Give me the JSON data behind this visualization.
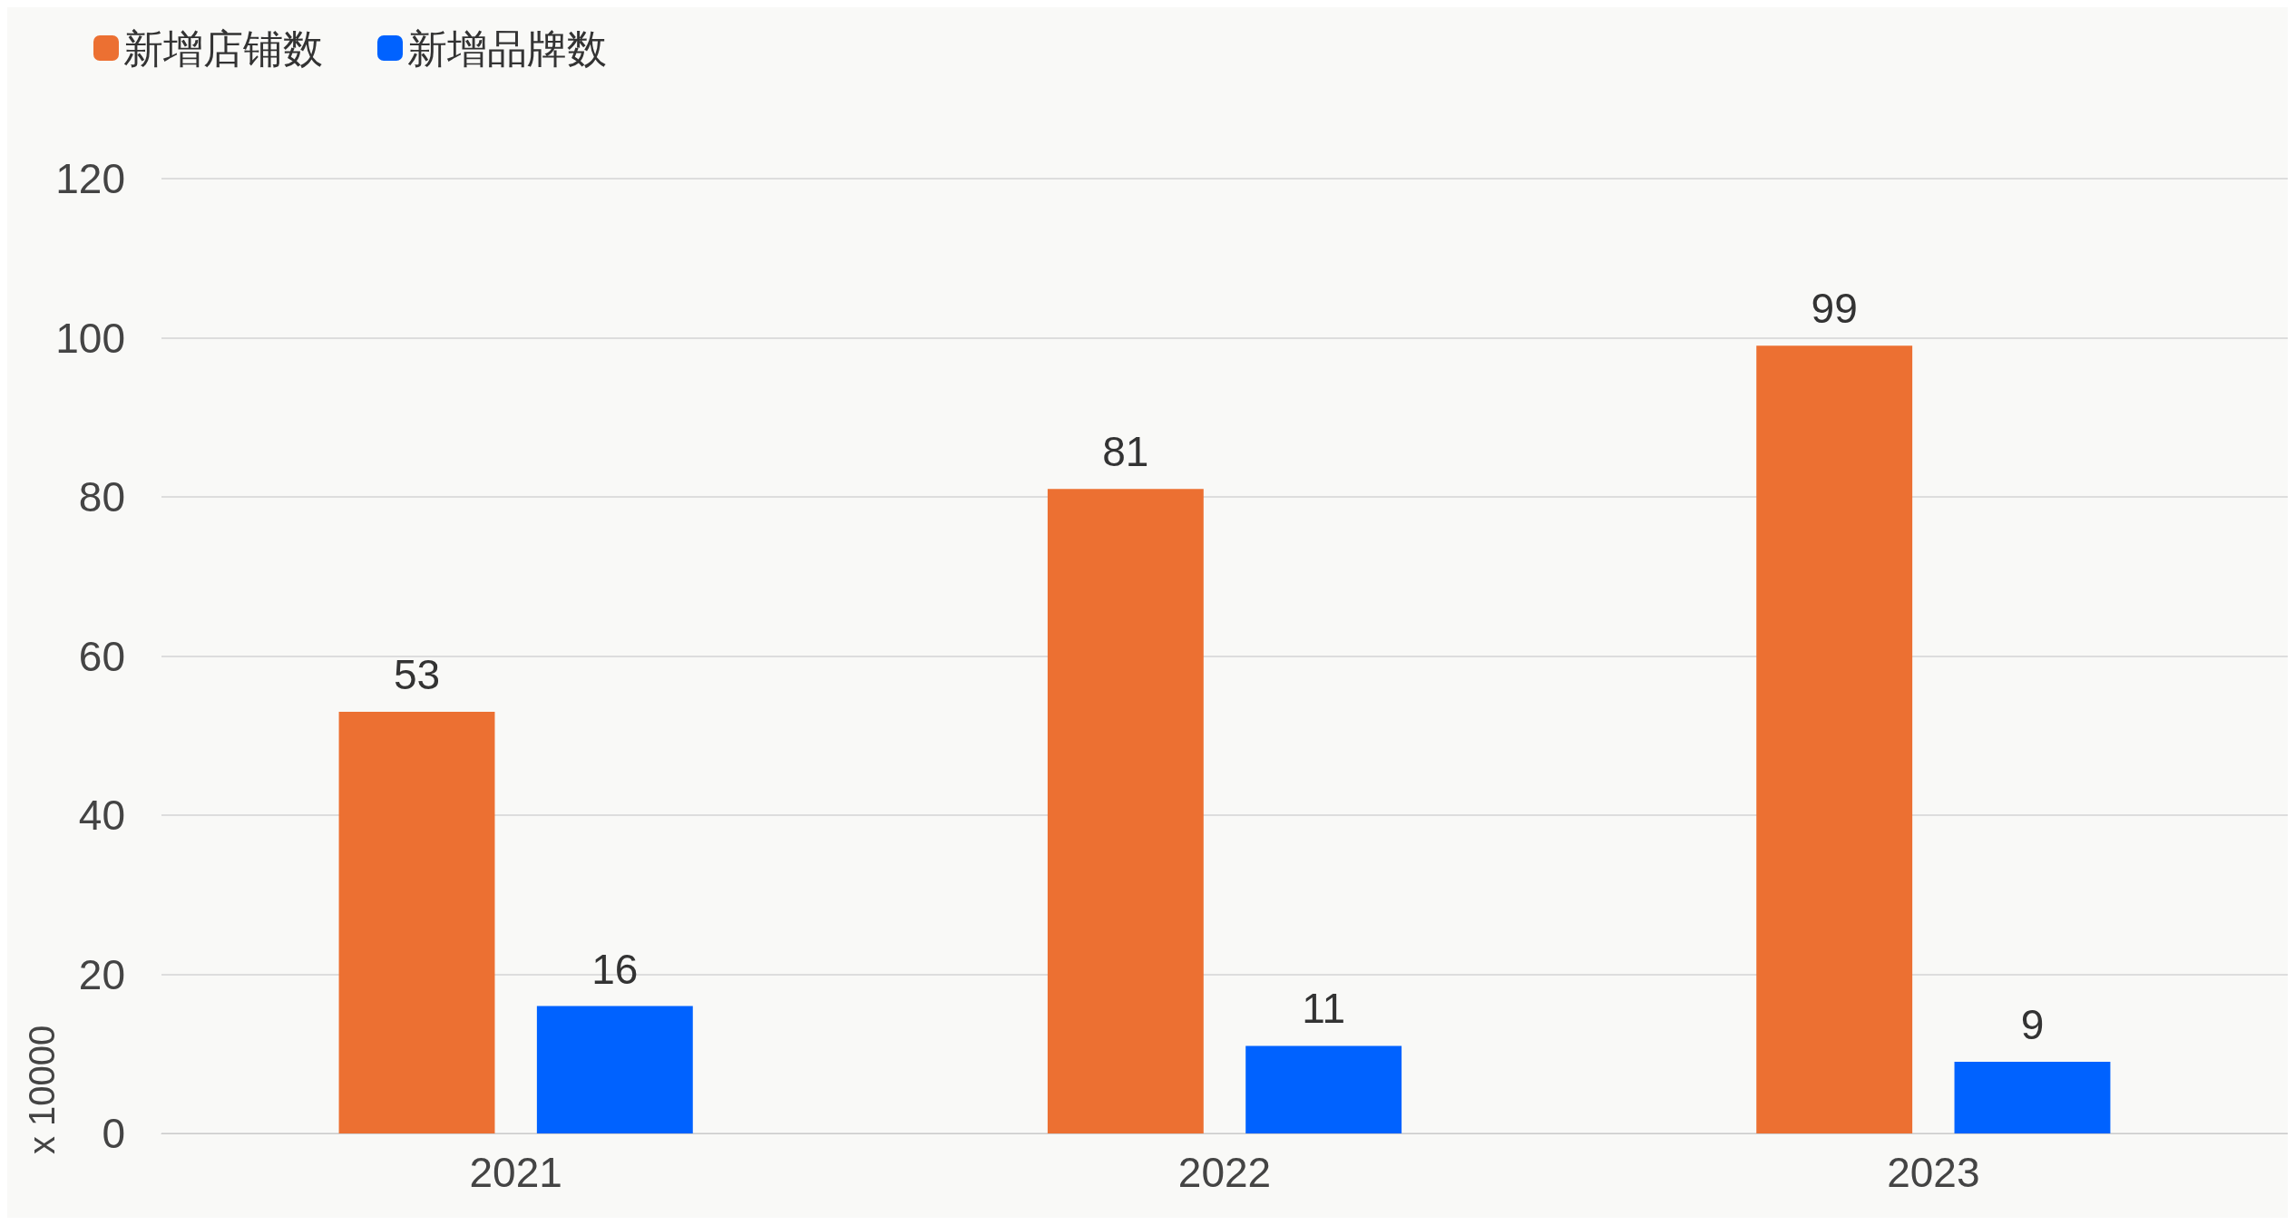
{
  "chart_data": {
    "type": "bar",
    "ylabel": "x 10000",
    "categories": [
      "2021",
      "2022",
      "2023"
    ],
    "series": [
      {
        "name": "新增店铺数",
        "color": "#ec7032",
        "values": [
          53,
          81,
          99
        ]
      },
      {
        "name": "新增品牌数",
        "color": "#0062ff",
        "values": [
          16,
          11,
          9
        ]
      }
    ],
    "ylim": [
      0,
      120
    ],
    "yticks": [
      0,
      20,
      40,
      60,
      80,
      100,
      120
    ],
    "grid": "y",
    "legend": "top left",
    "data_labels": true
  }
}
